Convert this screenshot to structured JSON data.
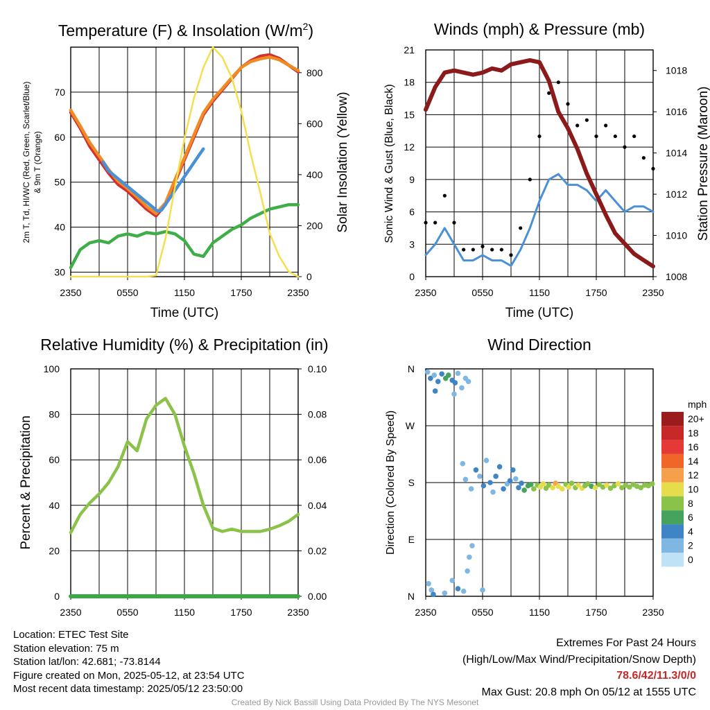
{
  "chart_data": [
    {
      "type": "line",
      "title": "Temperature (F) & Insolation (W/m²)",
      "title_main": "Temperature (F) & Insolation (W/m",
      "title_sup": "2",
      "title_end": ")",
      "xlabel": "Time (UTC)",
      "ylabel_line1": "2m T, Td, HI/WC (Red, Green, Scarlet/Blue)",
      "ylabel_line2": "& 9m T (Orange)",
      "y2label": "Solar Insolation (Yellow)",
      "x_ticks": [
        "2350",
        "0550",
        "1150",
        "1750",
        "2350"
      ],
      "ylim": [
        29,
        80
      ],
      "y_ticks": [
        30,
        40,
        50,
        60,
        70
      ],
      "y2lim": [
        0,
        900
      ],
      "y2_ticks": [
        0,
        200,
        400,
        600,
        800
      ],
      "grid": true,
      "series": [
        {
          "color": "#d32f2f",
          "axis": "left",
          "x": [
            0,
            1,
            2,
            3,
            4,
            5,
            6,
            7,
            8,
            9,
            10,
            11,
            12,
            13,
            14,
            15,
            16,
            17,
            18,
            19,
            20,
            21,
            22,
            23,
            24
          ],
          "values": [
            65.5,
            62,
            58,
            55,
            52,
            49.5,
            48,
            46,
            44,
            42.5,
            45,
            50,
            55,
            60,
            65,
            68,
            70.5,
            73,
            75.5,
            77,
            78,
            78.3,
            77.5,
            76,
            74.5
          ]
        },
        {
          "color": "#f08a24",
          "axis": "left",
          "x": [
            0,
            1,
            2,
            3,
            4,
            5,
            6,
            7,
            8,
            9,
            10,
            11,
            12,
            13,
            14,
            15,
            16,
            17,
            18,
            19,
            20,
            21,
            22,
            23,
            24
          ],
          "values": [
            66,
            62.5,
            58.8,
            55.8,
            52.8,
            50.2,
            48.6,
            46.7,
            44.6,
            43,
            45.4,
            50.5,
            55.4,
            60.5,
            65.4,
            68.4,
            70.8,
            73.2,
            75.5,
            76.8,
            77.4,
            77.8,
            77.2,
            76,
            74.8
          ]
        },
        {
          "color": "#3fae49",
          "axis": "left",
          "x": [
            0,
            1,
            2,
            3,
            4,
            5,
            6,
            7,
            8,
            9,
            10,
            11,
            12,
            13,
            14,
            15,
            16,
            17,
            18,
            19,
            20,
            21,
            22,
            23,
            24
          ],
          "values": [
            31,
            35,
            36.5,
            37,
            36.5,
            38,
            38.5,
            38,
            38.8,
            38.5,
            39,
            38.5,
            37,
            34,
            33.5,
            36.5,
            38,
            39.5,
            40.5,
            42,
            43,
            44,
            44.5,
            45,
            45
          ]
        },
        {
          "color": "#4a90d6",
          "axis": "left",
          "x": [
            3.4,
            4.0,
            9.2,
            9.6,
            13.6,
            14.0
          ],
          "values": [
            54.5,
            52.5,
            43.5,
            43.8,
            56.2,
            57.4
          ]
        },
        {
          "color": "#f5df4d",
          "axis": "right",
          "x": [
            0,
            1,
            2,
            3,
            4,
            5,
            6,
            7,
            8,
            9,
            10,
            11,
            12,
            13,
            14,
            15,
            16,
            17,
            18,
            19,
            20,
            21,
            22,
            23,
            24
          ],
          "values": [
            0,
            0,
            0,
            0,
            0,
            0,
            0,
            0,
            0,
            5,
            150,
            350,
            540,
            700,
            820,
            900,
            860,
            780,
            650,
            480,
            330,
            170,
            80,
            20,
            0
          ]
        }
      ]
    },
    {
      "type": "line",
      "title": "Winds (mph) & Pressure (mb)",
      "xlabel": "Time (UTC)",
      "ylabel": "Sonic Wind & Gust (Blue, Black)",
      "y2label": "Station Pressure (Maroon)",
      "x_ticks": [
        "2350",
        "0550",
        "1150",
        "1750",
        "2350"
      ],
      "ylim": [
        0,
        21
      ],
      "y_ticks": [
        0,
        3,
        6,
        9,
        12,
        15,
        18,
        21
      ],
      "y2lim": [
        1008,
        1019
      ],
      "y2_ticks": [
        1008,
        1010,
        1012,
        1014,
        1016,
        1018
      ],
      "grid": true,
      "series": [
        {
          "color": "#8b1a1a",
          "axis": "right",
          "x": [
            0,
            1,
            2,
            3,
            4,
            5,
            6,
            7,
            8,
            9,
            10,
            11,
            12,
            13,
            14,
            15,
            16,
            17,
            18,
            19,
            20,
            21,
            22,
            23,
            24
          ],
          "values": [
            1016.1,
            1017.2,
            1017.9,
            1018.0,
            1017.9,
            1017.8,
            1017.9,
            1018.1,
            1018.0,
            1018.3,
            1018.4,
            1018.5,
            1018.4,
            1017.5,
            1016.0,
            1015.2,
            1014.2,
            1013.0,
            1012.0,
            1011.0,
            1010.1,
            1009.6,
            1009.1,
            1008.8,
            1008.5
          ]
        },
        {
          "color": "#4a90d6",
          "axis": "left",
          "x": [
            0,
            1,
            2,
            3,
            4,
            5,
            6,
            7,
            8,
            9,
            10,
            11,
            12,
            13,
            14,
            15,
            16,
            17,
            18,
            19,
            20,
            21,
            22,
            23,
            24
          ],
          "values": [
            2,
            3,
            4.5,
            3,
            1.5,
            1.5,
            2,
            1.5,
            1.5,
            1,
            2.5,
            4.5,
            7,
            9,
            9.5,
            8.5,
            8.5,
            8,
            7,
            8,
            7,
            6,
            6.5,
            6.5,
            6
          ]
        },
        {
          "color": "#000000",
          "axis": "left",
          "x": [
            0,
            1,
            2,
            3,
            4,
            5,
            6,
            7,
            8,
            9,
            10,
            11,
            12,
            13,
            14,
            15,
            16,
            17,
            18,
            19,
            20,
            21,
            22,
            23,
            24
          ],
          "values": [
            5,
            5,
            7.5,
            5,
            2.5,
            2.5,
            2.8,
            2.5,
            2.5,
            2,
            4.5,
            9,
            13,
            17,
            18,
            16,
            14,
            14.5,
            13,
            14,
            13,
            12,
            13,
            11,
            10
          ]
        }
      ]
    },
    {
      "type": "line",
      "title": "Relative Humidity (%) & Precipitation (in)",
      "ylabel": "Percent & Precipitation",
      "x_ticks": [
        "2350",
        "0550",
        "1150",
        "1750",
        "2350"
      ],
      "ylim": [
        0,
        100
      ],
      "y_ticks": [
        0,
        20,
        40,
        60,
        80,
        100
      ],
      "y2lim": [
        0,
        0.1
      ],
      "y2_ticks": [
        "0.00",
        "0.02",
        "0.04",
        "0.06",
        "0.08",
        "0.10"
      ],
      "grid": true,
      "series": [
        {
          "color": "#8bc34a",
          "axis": "left",
          "x": [
            0,
            1,
            2,
            3,
            4,
            5,
            6,
            7,
            8,
            9,
            10,
            11,
            12,
            13,
            14,
            15,
            16,
            17,
            18,
            19,
            20,
            21,
            22,
            23,
            24
          ],
          "values": [
            28,
            36,
            41,
            45,
            50,
            57,
            68,
            64,
            78,
            84,
            87,
            80,
            66,
            54,
            40,
            30,
            28.5,
            29.5,
            28.5,
            28.5,
            28.5,
            29.5,
            31,
            33,
            36
          ]
        },
        {
          "color": "#3aa845",
          "axis": "right",
          "x": [
            0,
            24
          ],
          "values": [
            0,
            0
          ]
        }
      ]
    },
    {
      "type": "scatter",
      "title": "Wind Direction",
      "ylabel": "Direction (Colored By Speed)",
      "x_ticks": [
        "2350",
        "0550",
        "1150",
        "1750",
        "2350"
      ],
      "y_ticks": [
        "N",
        "E",
        "S",
        "W",
        "N"
      ],
      "ylim": [
        0,
        360
      ],
      "grid": true,
      "colorbar": {
        "title": "mph",
        "labels": [
          "20+",
          "18",
          "16",
          "14",
          "12",
          "10",
          "8",
          "6",
          "4",
          "2",
          "0"
        ],
        "colors": [
          "#9b1c1c",
          "#c62828",
          "#e53935",
          "#f06629",
          "#f6a04d",
          "#e6dd4c",
          "#8bc34a",
          "#45a35e",
          "#3f84c4",
          "#7fb7e2",
          "#bfe2f7"
        ]
      },
      "points": [
        {
          "x": 0.2,
          "y": 355,
          "speed": 2
        },
        {
          "x": 0.5,
          "y": 345,
          "speed": 3
        },
        {
          "x": 0.9,
          "y": 350,
          "speed": 2
        },
        {
          "x": 1.3,
          "y": 340,
          "speed": 3
        },
        {
          "x": 1.7,
          "y": 352,
          "speed": 4
        },
        {
          "x": 2.1,
          "y": 345,
          "speed": 5
        },
        {
          "x": 2.4,
          "y": 350,
          "speed": 6
        },
        {
          "x": 2.8,
          "y": 342,
          "speed": 4
        },
        {
          "x": 3.1,
          "y": 338,
          "speed": 3
        },
        {
          "x": 3.4,
          "y": 353,
          "speed": 2
        },
        {
          "x": 3.8,
          "y": 330,
          "speed": 2
        },
        {
          "x": 4.2,
          "y": 345,
          "speed": 1
        },
        {
          "x": 4.5,
          "y": 340,
          "speed": 1
        },
        {
          "x": 1.0,
          "y": 325,
          "speed": 3
        },
        {
          "x": 3.0,
          "y": 320,
          "speed": 2
        },
        {
          "x": 0.3,
          "y": 20,
          "speed": 2
        },
        {
          "x": 0.6,
          "y": 10,
          "speed": 1
        },
        {
          "x": 0.8,
          "y": 3,
          "speed": 3
        },
        {
          "x": 2.0,
          "y": 5,
          "speed": 2
        },
        {
          "x": 2.8,
          "y": 25,
          "speed": 2
        },
        {
          "x": 3.4,
          "y": 12,
          "speed": 3
        },
        {
          "x": 4.0,
          "y": 8,
          "speed": 2
        },
        {
          "x": 4.4,
          "y": 40,
          "speed": 1
        },
        {
          "x": 4.6,
          "y": 62,
          "speed": 2
        },
        {
          "x": 4.9,
          "y": 80,
          "speed": 1
        },
        {
          "x": 6.0,
          "y": 10,
          "speed": 1
        },
        {
          "x": 3.9,
          "y": 210,
          "speed": 2
        },
        {
          "x": 4.2,
          "y": 185,
          "speed": 1
        },
        {
          "x": 4.8,
          "y": 170,
          "speed": 2
        },
        {
          "x": 5.3,
          "y": 200,
          "speed": 3
        },
        {
          "x": 5.7,
          "y": 190,
          "speed": 2
        },
        {
          "x": 6.1,
          "y": 175,
          "speed": 3
        },
        {
          "x": 6.4,
          "y": 215,
          "speed": 2
        },
        {
          "x": 6.8,
          "y": 180,
          "speed": 3
        },
        {
          "x": 7.1,
          "y": 165,
          "speed": 2
        },
        {
          "x": 7.4,
          "y": 190,
          "speed": 3
        },
        {
          "x": 7.8,
          "y": 205,
          "speed": 3
        },
        {
          "x": 8.2,
          "y": 170,
          "speed": 4
        },
        {
          "x": 8.6,
          "y": 178,
          "speed": 2
        },
        {
          "x": 8.9,
          "y": 183,
          "speed": 3
        },
        {
          "x": 9.2,
          "y": 200,
          "speed": 3
        },
        {
          "x": 9.5,
          "y": 186,
          "speed": 2
        },
        {
          "x": 9.8,
          "y": 172,
          "speed": 4
        },
        {
          "x": 10.1,
          "y": 179,
          "speed": 4
        },
        {
          "x": 10.4,
          "y": 168,
          "speed": 5
        },
        {
          "x": 10.8,
          "y": 175,
          "speed": 5
        },
        {
          "x": 11.1,
          "y": 177,
          "speed": 6
        },
        {
          "x": 11.4,
          "y": 170,
          "speed": 7
        },
        {
          "x": 11.8,
          "y": 176,
          "speed": 8
        },
        {
          "x": 12.1,
          "y": 173,
          "speed": 9
        },
        {
          "x": 12.4,
          "y": 178,
          "speed": 10
        },
        {
          "x": 12.7,
          "y": 171,
          "speed": 8
        },
        {
          "x": 13.0,
          "y": 176,
          "speed": 7
        },
        {
          "x": 13.4,
          "y": 172,
          "speed": 9
        },
        {
          "x": 13.7,
          "y": 179,
          "speed": 11
        },
        {
          "x": 14.0,
          "y": 174,
          "speed": 9
        },
        {
          "x": 14.4,
          "y": 170,
          "speed": 10
        },
        {
          "x": 14.8,
          "y": 177,
          "speed": 8
        },
        {
          "x": 15.1,
          "y": 173,
          "speed": 9
        },
        {
          "x": 15.4,
          "y": 179,
          "speed": 7
        },
        {
          "x": 15.8,
          "y": 172,
          "speed": 8
        },
        {
          "x": 16.1,
          "y": 176,
          "speed": 10
        },
        {
          "x": 16.5,
          "y": 171,
          "speed": 9
        },
        {
          "x": 16.8,
          "y": 175,
          "speed": 7
        },
        {
          "x": 17.1,
          "y": 178,
          "speed": 8
        },
        {
          "x": 17.5,
          "y": 174,
          "speed": 6
        },
        {
          "x": 17.9,
          "y": 172,
          "speed": 9
        },
        {
          "x": 18.3,
          "y": 177,
          "speed": 8
        },
        {
          "x": 18.7,
          "y": 173,
          "speed": 7
        },
        {
          "x": 19.1,
          "y": 176,
          "speed": 9
        },
        {
          "x": 19.5,
          "y": 171,
          "speed": 8
        },
        {
          "x": 19.9,
          "y": 175,
          "speed": 7
        },
        {
          "x": 20.3,
          "y": 178,
          "speed": 9
        },
        {
          "x": 20.7,
          "y": 172,
          "speed": 8
        },
        {
          "x": 21.1,
          "y": 176,
          "speed": 8
        },
        {
          "x": 21.5,
          "y": 173,
          "speed": 7
        },
        {
          "x": 21.9,
          "y": 177,
          "speed": 8
        },
        {
          "x": 22.3,
          "y": 174,
          "speed": 7
        },
        {
          "x": 22.7,
          "y": 172,
          "speed": 8
        },
        {
          "x": 23.1,
          "y": 176,
          "speed": 7
        },
        {
          "x": 23.5,
          "y": 175,
          "speed": 7
        },
        {
          "x": 23.9,
          "y": 178,
          "speed": 8
        }
      ]
    }
  ],
  "info": {
    "location": "Location: ETEC Test Site",
    "elevation": "Station elevation: 75 m",
    "latlon": "Station lat/lon: 42.681; -73.8144",
    "created": "Figure created on Mon, 2025-05-12, at 23:54 UTC",
    "recent": "Most recent data timestamp: 2025/05/12 23:50:00"
  },
  "extremes": {
    "title": "Extremes For Past 24 Hours",
    "subtitle": "(High/Low/Max Wind/Precipitation/Snow Depth)",
    "values": "78.6/42/11.3/0/0",
    "gust": "Max Gust: 20.8 mph On 05/12 at 1555 UTC"
  },
  "credit": "Created By Nick Bassill Using Data Provided By The NYS Mesonet"
}
